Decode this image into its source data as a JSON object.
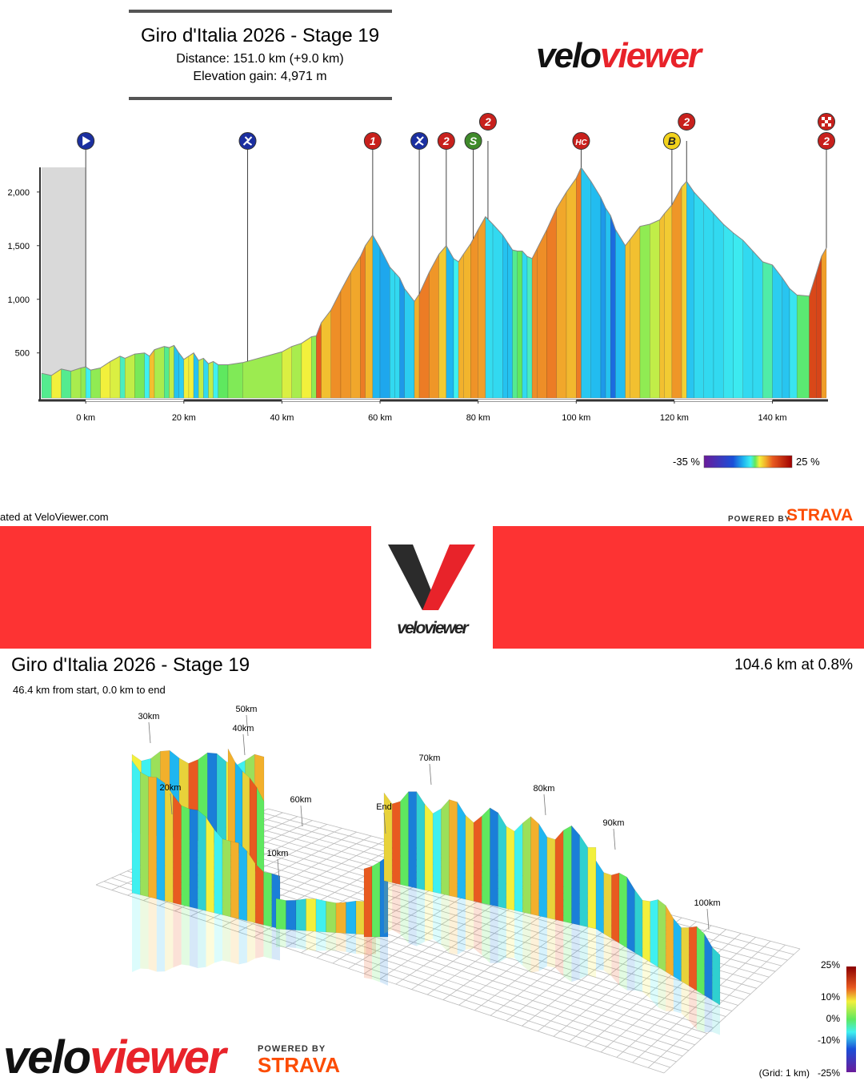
{
  "header": {
    "title": "Giro d'Italia 2026 - Stage 19",
    "distance": "Distance: 151.0 km (+9.0 km)",
    "elevation": "Elevation gain: 4,971 m",
    "logo": {
      "a": "velo",
      "b": "viewer"
    }
  },
  "chart_data": {
    "type": "area",
    "x": [
      -9,
      -7,
      -5,
      -3,
      -1,
      0,
      1,
      3,
      5,
      7,
      8,
      10,
      12,
      13,
      14,
      16,
      17,
      18,
      19,
      20,
      21,
      22,
      23,
      24,
      25,
      26,
      27,
      29,
      32,
      40,
      42,
      44,
      46,
      47,
      48,
      50,
      52,
      54,
      56,
      57,
      58.5,
      60,
      62,
      63,
      64,
      65,
      67,
      68,
      70,
      72,
      73.5,
      75,
      76,
      77,
      78.5,
      80,
      81.5,
      83,
      85,
      86,
      87,
      88,
      89,
      90,
      91,
      92,
      94,
      96,
      98,
      100,
      101,
      103,
      105,
      106,
      107,
      108,
      110,
      111,
      113,
      115,
      117,
      118,
      119.5,
      121.5,
      122.5,
      124,
      126,
      128,
      130,
      132,
      134,
      136,
      138,
      140,
      142,
      143.5,
      145,
      147.5,
      149,
      150,
      151
    ],
    "values": [
      310,
      290,
      350,
      330,
      360,
      370,
      340,
      360,
      420,
      470,
      450,
      490,
      500,
      470,
      530,
      560,
      550,
      570,
      500,
      440,
      470,
      500,
      430,
      450,
      400,
      420,
      390,
      390,
      410,
      510,
      560,
      590,
      650,
      660,
      780,
      900,
      1080,
      1250,
      1400,
      1500,
      1600,
      1480,
      1300,
      1250,
      1200,
      1100,
      980,
      1050,
      1250,
      1420,
      1500,
      1380,
      1350,
      1420,
      1520,
      1650,
      1770,
      1700,
      1600,
      1530,
      1460,
      1450,
      1450,
      1400,
      1380,
      1470,
      1650,
      1850,
      2000,
      2130,
      2230,
      2100,
      1950,
      1850,
      1780,
      1650,
      1500,
      1560,
      1680,
      1700,
      1740,
      1800,
      1880,
      2050,
      2100,
      2000,
      1900,
      1800,
      1700,
      1620,
      1550,
      1450,
      1350,
      1320,
      1200,
      1100,
      1040,
      1030,
      1250,
      1400,
      1480
    ],
    "xlim": [
      -9,
      151
    ],
    "ylim": [
      80,
      2230
    ],
    "xticks": [
      {
        "value": 0,
        "label": "0 km"
      },
      {
        "value": 20,
        "label": "20 km"
      },
      {
        "value": 40,
        "label": "40 km"
      },
      {
        "value": 60,
        "label": "60 km"
      },
      {
        "value": 80,
        "label": "80 km"
      },
      {
        "value": 100,
        "label": "100 km"
      },
      {
        "value": 120,
        "label": "120 km"
      },
      {
        "value": 140,
        "label": "140 km"
      }
    ],
    "yticks": [
      500,
      {
        "value": 1000,
        "label": "1,000"
      },
      {
        "value": 1500,
        "label": "1,500"
      },
      {
        "value": 2000,
        "label": "2,000"
      }
    ],
    "markers": [
      {
        "x": 0,
        "color": "#1b2fa0"
      },
      {
        "x": 33,
        "color": "#1b2fa0"
      },
      {
        "x": 58.5,
        "label": "1",
        "color": "#c8201c"
      },
      {
        "x": 68,
        "color": "#1b2fa0"
      },
      {
        "x": 73.5,
        "label": "2",
        "color": "#c8201c"
      },
      {
        "x": 79,
        "label": "S",
        "color": "#3f8a2a"
      },
      {
        "x": 82,
        "label": "2",
        "color": "#c8201c"
      },
      {
        "x": 101,
        "label": "HC",
        "color": "#c8201c"
      },
      {
        "x": 119.5,
        "label": "B",
        "color": "#f2d21c"
      },
      {
        "x": 122.5,
        "label": "2",
        "color": "#c8201c"
      },
      {
        "x": 151,
        "label": "2",
        "color": "#c8201c"
      }
    ],
    "colorbar": {
      "min_label": "-35 %",
      "max_label": "25 %"
    }
  },
  "footer": {
    "credit": "ated at VeloViewer.com",
    "powered": "POWERED BY",
    "strava": "STRAVA"
  },
  "banner": {
    "logo": "veloviewer"
  },
  "view3d": {
    "title": "Giro d'Italia 2026 - Stage 19",
    "summary": "104.6 km at 0.8%",
    "position": "46.4 km from start, 0.0 km to end",
    "km_labels": [
      "30km",
      "50km",
      "40km",
      "20km",
      "60km",
      "10km",
      "End",
      "70km",
      "80km",
      "90km",
      "100km"
    ],
    "scale_labels": [
      "25%",
      "10%",
      "0%",
      "-10%",
      "-25%"
    ],
    "grid_note": "(Grid: 1 km)"
  },
  "bottom": {
    "logo": {
      "a": "velo",
      "b": "viewer"
    },
    "powered": "POWERED BY",
    "strava": "STRAVA"
  }
}
